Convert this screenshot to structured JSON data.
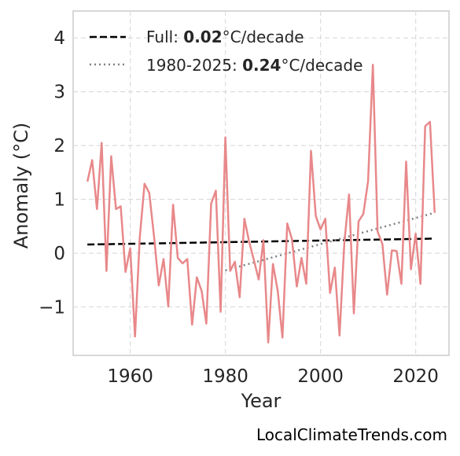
{
  "chart_data": {
    "type": "line",
    "xlabel": "Year",
    "ylabel": "Anomaly (°C)",
    "xlim": [
      1948,
      2027
    ],
    "ylim": [
      -1.9,
      4.5
    ],
    "x_ticks": [
      1960,
      1980,
      2000,
      2020
    ],
    "y_ticks": [
      -1,
      0,
      1,
      2,
      3,
      4
    ],
    "y_tick_labels": [
      "−1",
      "0",
      "1",
      "2",
      "3",
      "4"
    ],
    "grid": true,
    "legend_position": "top-left",
    "series": [
      {
        "color": "#e8888a",
        "x": [
          1951,
          1952,
          1953,
          1954,
          1955,
          1956,
          1957,
          1958,
          1959,
          1960,
          1961,
          1962,
          1963,
          1964,
          1965,
          1966,
          1967,
          1968,
          1969,
          1970,
          1971,
          1972,
          1973,
          1974,
          1975,
          1976,
          1977,
          1978,
          1979,
          1980,
          1981,
          1982,
          1983,
          1984,
          1985,
          1986,
          1987,
          1988,
          1989,
          1990,
          1991,
          1992,
          1993,
          1994,
          1995,
          1996,
          1997,
          1998,
          1999,
          2000,
          2001,
          2002,
          2003,
          2004,
          2005,
          2006,
          2007,
          2008,
          2009,
          2010,
          2011,
          2012,
          2013,
          2014,
          2015,
          2016,
          2017,
          2018,
          2019,
          2020,
          2021,
          2022,
          2023,
          2024
        ],
        "y": [
          1.33,
          1.73,
          0.82,
          2.05,
          -0.33,
          1.8,
          0.82,
          0.87,
          -0.35,
          0.09,
          -1.55,
          0.28,
          1.29,
          1.12,
          0.31,
          -0.6,
          -0.11,
          -0.99,
          0.9,
          -0.09,
          -0.19,
          -0.11,
          -1.33,
          -0.45,
          -0.7,
          -1.31,
          0.92,
          1.16,
          -1.09,
          2.15,
          -0.33,
          -0.16,
          -0.82,
          0.64,
          0.21,
          -0.13,
          -0.49,
          0.24,
          -1.66,
          -0.2,
          -0.7,
          -1.57,
          0.55,
          0.26,
          -0.62,
          -0.09,
          -0.57,
          1.9,
          0.69,
          0.44,
          0.64,
          -0.74,
          -0.27,
          -1.53,
          0.19,
          1.09,
          -1.12,
          0.59,
          0.73,
          1.34,
          3.5,
          0.4,
          0.17,
          -0.77,
          0.05,
          0.04,
          -0.57,
          1.7,
          -0.3,
          0.36,
          -0.57,
          2.36,
          2.44,
          0.75
        ]
      }
    ],
    "trends": [
      {
        "label_prefix": "Full: ",
        "rate": "0.02",
        "label_suffix": "°C/decade",
        "style": "dashed",
        "color": "#000000",
        "x": [
          1951,
          2024
        ],
        "y": [
          0.16,
          0.27
        ]
      },
      {
        "label_prefix": "1980-2025: ",
        "rate": "0.24",
        "label_suffix": "°C/decade",
        "style": "dotted",
        "color": "#808080",
        "x": [
          1980,
          2024
        ],
        "y": [
          -0.32,
          0.75
        ]
      }
    ]
  },
  "watermark": "LocalClimateTrends.com"
}
